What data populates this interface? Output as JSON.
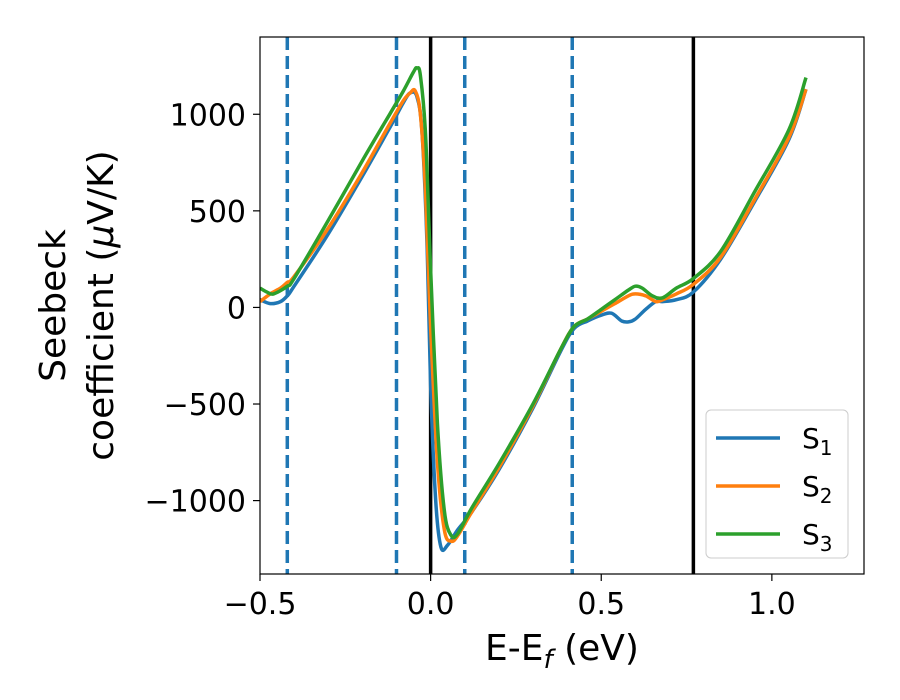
{
  "chart_data": {
    "type": "line",
    "xlabel": "E-E",
    "xlabel_sub": "f",
    "xlabel_suffix": " (eV)",
    "ylabel_line1": "Seebeck",
    "ylabel_line2": "coefficient  (",
    "ylabel_mu": "μ",
    "ylabel_line2_suffix": "V/K)",
    "xlim": [
      -0.5,
      1.27
    ],
    "ylim": [
      -1380,
      1400
    ],
    "xticks": [
      -0.5,
      0.0,
      0.5,
      1.0
    ],
    "xtick_labels": [
      "−0.5",
      "0.0",
      "0.5",
      "1.0"
    ],
    "yticks": [
      -1000,
      -500,
      0,
      500,
      1000
    ],
    "ytick_labels": [
      "−1000",
      "−500",
      "0",
      "500",
      "1000"
    ],
    "grid": false,
    "legend_position": "lower-right",
    "vlines_dashed": [
      -0.42,
      -0.1,
      0.1,
      0.415
    ],
    "vlines_solid": [
      0.0,
      0.77
    ],
    "series": [
      {
        "name": "S",
        "name_sub": "1",
        "color": "#1f77b4",
        "points": [
          [
            -0.5,
            40
          ],
          [
            -0.47,
            20
          ],
          [
            -0.44,
            30
          ],
          [
            -0.42,
            60
          ],
          [
            -0.4,
            110
          ],
          [
            -0.3,
            380
          ],
          [
            -0.2,
            680
          ],
          [
            -0.12,
            930
          ],
          [
            -0.08,
            1060
          ],
          [
            -0.06,
            1110
          ],
          [
            -0.04,
            1090
          ],
          [
            -0.025,
            900
          ],
          [
            -0.01,
            300
          ],
          [
            0.0,
            -400
          ],
          [
            0.015,
            -1000
          ],
          [
            0.03,
            -1240
          ],
          [
            0.05,
            -1230
          ],
          [
            0.08,
            -1150
          ],
          [
            0.12,
            -1060
          ],
          [
            0.2,
            -840
          ],
          [
            0.3,
            -520
          ],
          [
            0.38,
            -230
          ],
          [
            0.42,
            -110
          ],
          [
            0.46,
            -70
          ],
          [
            0.5,
            -40
          ],
          [
            0.53,
            -30
          ],
          [
            0.56,
            -70
          ],
          [
            0.58,
            -75
          ],
          [
            0.6,
            -60
          ],
          [
            0.63,
            -10
          ],
          [
            0.66,
            30
          ],
          [
            0.68,
            30
          ],
          [
            0.72,
            40
          ],
          [
            0.77,
            80
          ],
          [
            0.85,
            250
          ],
          [
            0.95,
            550
          ],
          [
            1.05,
            870
          ],
          [
            1.1,
            1130
          ]
        ]
      },
      {
        "name": "S",
        "name_sub": "2",
        "color": "#ff7f0e",
        "points": [
          [
            -0.5,
            30
          ],
          [
            -0.47,
            70
          ],
          [
            -0.44,
            100
          ],
          [
            -0.42,
            130
          ],
          [
            -0.4,
            160
          ],
          [
            -0.3,
            410
          ],
          [
            -0.2,
            700
          ],
          [
            -0.12,
            950
          ],
          [
            -0.08,
            1070
          ],
          [
            -0.06,
            1110
          ],
          [
            -0.045,
            1120
          ],
          [
            -0.03,
            1000
          ],
          [
            -0.015,
            600
          ],
          [
            0.0,
            -100
          ],
          [
            0.02,
            -800
          ],
          [
            0.04,
            -1150
          ],
          [
            0.06,
            -1210
          ],
          [
            0.08,
            -1180
          ],
          [
            0.12,
            -1060
          ],
          [
            0.2,
            -830
          ],
          [
            0.3,
            -510
          ],
          [
            0.38,
            -220
          ],
          [
            0.42,
            -100
          ],
          [
            0.46,
            -60
          ],
          [
            0.5,
            -20
          ],
          [
            0.54,
            20
          ],
          [
            0.58,
            60
          ],
          [
            0.6,
            70
          ],
          [
            0.63,
            60
          ],
          [
            0.66,
            30
          ],
          [
            0.68,
            40
          ],
          [
            0.72,
            70
          ],
          [
            0.77,
            120
          ],
          [
            0.85,
            260
          ],
          [
            0.95,
            560
          ],
          [
            1.05,
            880
          ],
          [
            1.1,
            1130
          ]
        ]
      },
      {
        "name": "S",
        "name_sub": "3",
        "color": "#2ca02c",
        "points": [
          [
            -0.5,
            100
          ],
          [
            -0.48,
            80
          ],
          [
            -0.46,
            70
          ],
          [
            -0.42,
            110
          ],
          [
            -0.4,
            150
          ],
          [
            -0.3,
            450
          ],
          [
            -0.2,
            760
          ],
          [
            -0.12,
            1000
          ],
          [
            -0.08,
            1120
          ],
          [
            -0.05,
            1220
          ],
          [
            -0.04,
            1240
          ],
          [
            -0.03,
            1200
          ],
          [
            -0.015,
            900
          ],
          [
            0.0,
            200
          ],
          [
            0.02,
            -600
          ],
          [
            0.04,
            -1050
          ],
          [
            0.06,
            -1180
          ],
          [
            0.08,
            -1170
          ],
          [
            0.12,
            -1040
          ],
          [
            0.2,
            -810
          ],
          [
            0.3,
            -500
          ],
          [
            0.38,
            -220
          ],
          [
            0.42,
            -100
          ],
          [
            0.46,
            -60
          ],
          [
            0.5,
            -10
          ],
          [
            0.54,
            40
          ],
          [
            0.58,
            90
          ],
          [
            0.6,
            110
          ],
          [
            0.62,
            100
          ],
          [
            0.65,
            60
          ],
          [
            0.68,
            50
          ],
          [
            0.72,
            100
          ],
          [
            0.77,
            150
          ],
          [
            0.85,
            290
          ],
          [
            0.95,
            600
          ],
          [
            1.05,
            920
          ],
          [
            1.1,
            1190
          ]
        ]
      }
    ]
  }
}
